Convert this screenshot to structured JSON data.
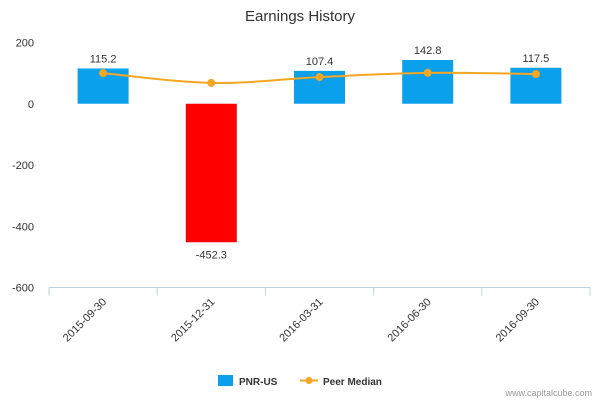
{
  "chart_data": {
    "type": "bar",
    "title": "Earnings History",
    "categories": [
      "2015-09-30",
      "2015-12-31",
      "2016-03-31",
      "2016-06-30",
      "2016-09-30"
    ],
    "series": [
      {
        "name": "PNR-US",
        "kind": "bar",
        "values": [
          115.2,
          -452.3,
          107.4,
          142.8,
          117.5
        ],
        "labels": [
          "115.2",
          "-452.3",
          "107.4",
          "142.8",
          "117.5"
        ],
        "colors": [
          "#0aa0ec",
          "#ff0000",
          "#0aa0ec",
          "#0aa0ec",
          "#0aa0ec"
        ]
      },
      {
        "name": "Peer Median",
        "kind": "line",
        "values": [
          100,
          68,
          87,
          101,
          97
        ],
        "color": "#f5a623"
      }
    ],
    "ylim": [
      -600,
      200
    ],
    "yticks": [
      200,
      0,
      -200,
      -400,
      -600
    ],
    "ytick_labels": [
      "200",
      "0",
      "-200",
      "-400",
      "-600"
    ],
    "xlabel": "",
    "ylabel": "",
    "legend_position": "bottom-center"
  },
  "watermark": "www.capitalcube.com",
  "colors": {
    "positive_bar": "#0aa0ec",
    "negative_bar": "#ff0000",
    "peer_line": "#f5a623",
    "axis": "#c0d0e0"
  }
}
